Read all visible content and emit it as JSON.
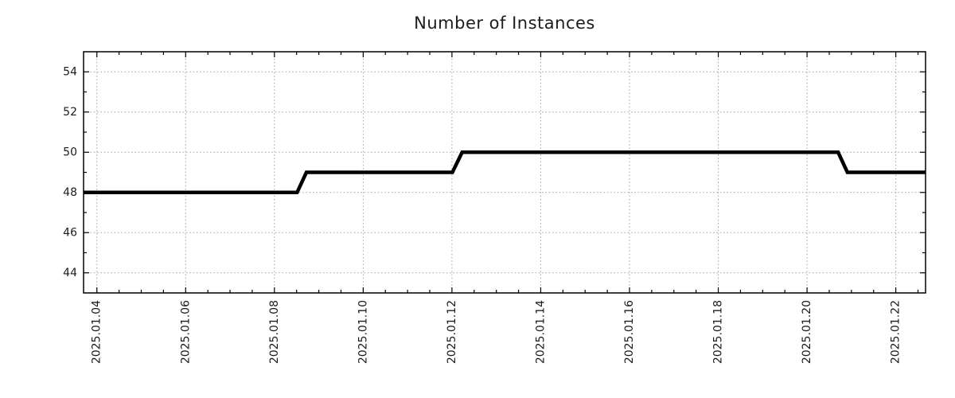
{
  "chart_data": {
    "type": "line",
    "title": "Number of Instances",
    "xlabel": "",
    "ylabel": "",
    "legend": "none",
    "grid": "dotted-major-both-axes",
    "ticks_mirrored_all_sides": true,
    "x_tick_labels": [
      "2025.01.04",
      "2025.01.06",
      "2025.01.08",
      "2025.01.10",
      "2025.01.12",
      "2025.01.14",
      "2025.01.16",
      "2025.01.18",
      "2025.01.20",
      "2025.01.22"
    ],
    "x_tick_days": [
      4,
      6,
      8,
      10,
      12,
      14,
      16,
      18,
      20,
      22
    ],
    "x_minor_tick_step_days": 0.5,
    "y_tick_labels": [
      "44",
      "46",
      "48",
      "50",
      "52",
      "54"
    ],
    "y_tick_values": [
      44,
      46,
      48,
      50,
      52,
      54
    ],
    "y_minor_tick_values": [
      45,
      47,
      49,
      51,
      53
    ],
    "xlim_days": [
      3.7,
      22.67
    ],
    "ylim": [
      43,
      55
    ],
    "series": [
      {
        "name": "instances",
        "color": "#000000",
        "points": [
          {
            "t": "2025-01-03 17:00",
            "day": 3.7,
            "y": 48
          },
          {
            "t": "2025-01-08 12:00",
            "day": 8.51,
            "y": 48
          },
          {
            "t": "2025-01-08 17:00",
            "day": 8.72,
            "y": 49
          },
          {
            "t": "2025-01-12 00:00",
            "day": 12.01,
            "y": 49
          },
          {
            "t": "2025-01-12 06:00",
            "day": 12.23,
            "y": 50
          },
          {
            "t": "2025-01-20 17:00",
            "day": 20.7,
            "y": 50
          },
          {
            "t": "2025-01-20 22:00",
            "day": 20.91,
            "y": 49
          },
          {
            "t": "2025-01-22 16:00",
            "day": 22.67,
            "y": 49
          }
        ]
      }
    ],
    "colors": {
      "line": "#000000",
      "grid": "#a0a0a0",
      "axis": "#000000",
      "text": "#1c1c1c",
      "background": "#ffffff"
    }
  }
}
